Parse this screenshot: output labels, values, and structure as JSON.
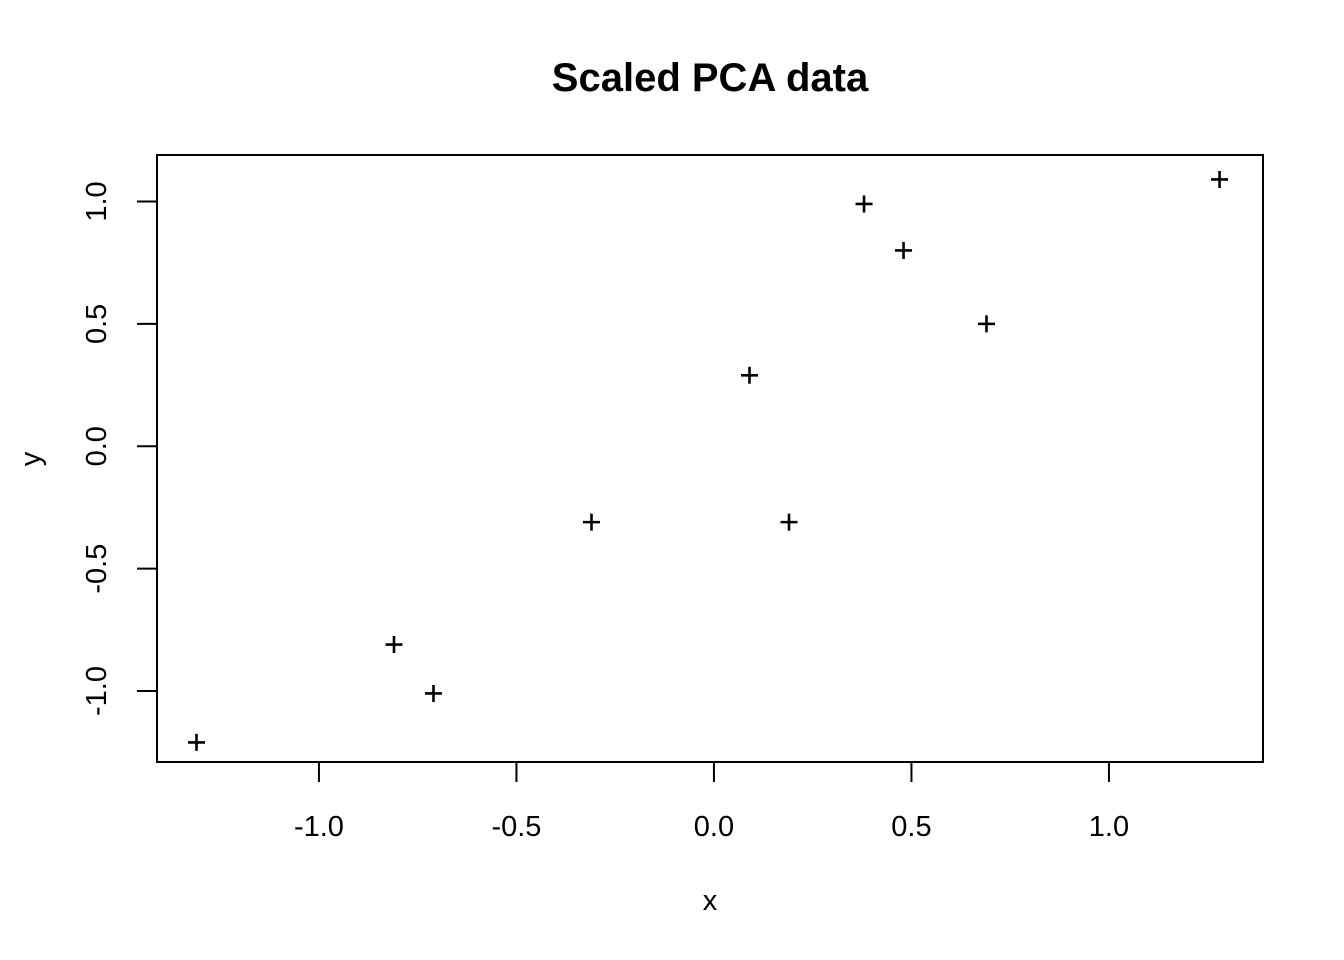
{
  "page": {
    "background": "#ffffff",
    "foreground": "#000000"
  },
  "chart_data": {
    "type": "scatter",
    "title": "Scaled PCA data",
    "xlabel": "x",
    "ylabel": "y",
    "marker": "plus",
    "marker_color": "#000000",
    "grid": false,
    "legend": false,
    "xlim": [
      -1.41,
      1.39
    ],
    "ylim": [
      -1.29,
      1.19
    ],
    "x_ticks": [
      -1.0,
      -0.5,
      0.0,
      0.5,
      1.0
    ],
    "x_tick_labels": [
      "-1.0",
      "-0.5",
      "0.0",
      "0.5",
      "1.0"
    ],
    "y_ticks": [
      -1.0,
      -0.5,
      0.0,
      0.5,
      1.0
    ],
    "y_tick_labels": [
      "-1.0",
      "-0.5",
      "0.0",
      "0.5",
      "1.0"
    ],
    "points": [
      {
        "x": -1.31,
        "y": -1.21
      },
      {
        "x": -0.81,
        "y": -0.81
      },
      {
        "x": -0.71,
        "y": -1.01
      },
      {
        "x": -0.31,
        "y": -0.31
      },
      {
        "x": 0.09,
        "y": 0.29
      },
      {
        "x": 0.19,
        "y": -0.31
      },
      {
        "x": 0.38,
        "y": 0.99
      },
      {
        "x": 0.48,
        "y": 0.8
      },
      {
        "x": 0.69,
        "y": 0.5
      },
      {
        "x": 1.28,
        "y": 1.09
      }
    ]
  }
}
